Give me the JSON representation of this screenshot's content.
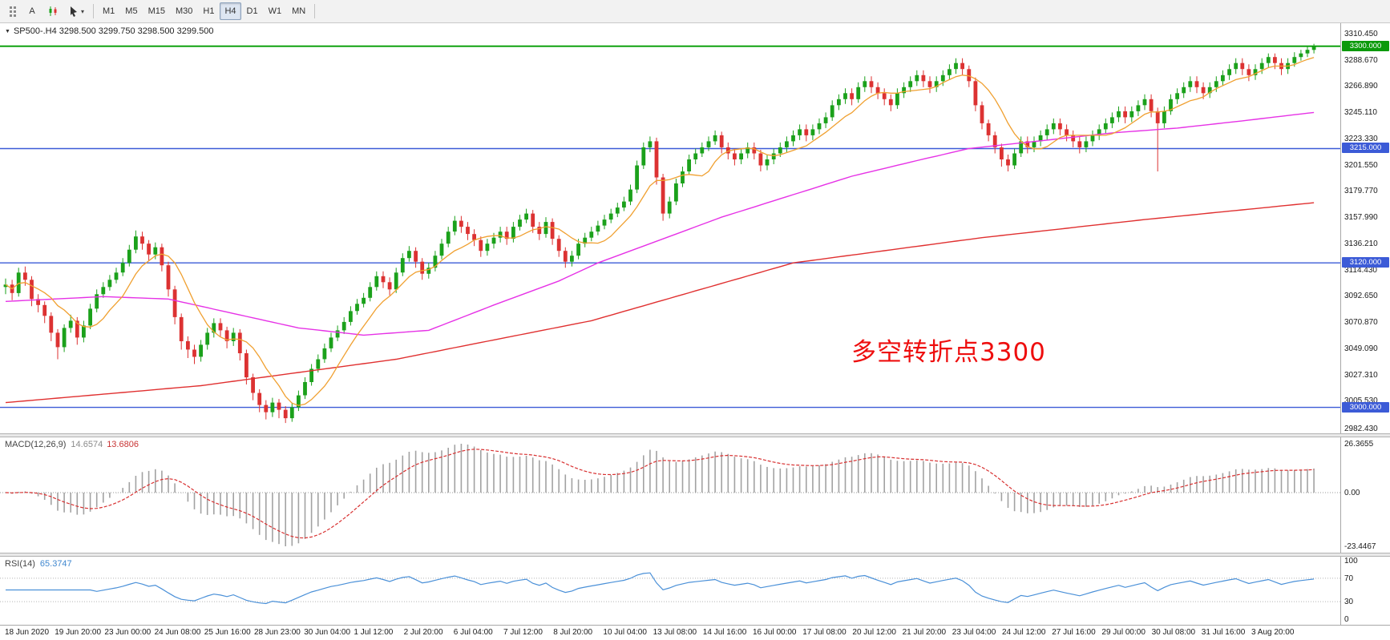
{
  "colors": {
    "candle_up": "#1ba11b",
    "candle_down": "#dc3232",
    "ma_fast": "#f0a030",
    "ma_mid": "#e632e6",
    "ma_slow": "#e03030",
    "macd_hist": "#a2a2a2",
    "macd_signal": "#d83030",
    "rsi": "#4a90d8",
    "hline_green": "#009c00",
    "hline_blue": "#3c5bd7"
  },
  "toolbar": {
    "annotate_button": "A",
    "icons": [
      "grip-handle-icon",
      "candlestick-type-icon",
      "pointer-tool-icon",
      "chevron-down-icon"
    ],
    "timeframe_buttons": [
      "M1",
      "M5",
      "M15",
      "M30",
      "H1",
      "H4",
      "D1",
      "W1",
      "MN"
    ],
    "active_timeframe": "H4"
  },
  "chart": {
    "symbol_line": "SP500-.H4  3298.500 3299.750 3298.500 3299.500",
    "annotation_text": "多空转折点3300",
    "price_axis_labels": [
      "3310.450",
      "3288.670",
      "3266.890",
      "3245.110",
      "3223.330",
      "3201.550",
      "3179.770",
      "3157.990",
      "3136.210",
      "3114.430",
      "3092.650",
      "3070.870",
      "3049.090",
      "3027.310",
      "3005.530",
      "2982.430"
    ],
    "price_tags": [
      {
        "label": "3300.000",
        "price": 3300.0,
        "bg": "#0a9a0a"
      },
      {
        "label": "3215.000",
        "price": 3215.0,
        "bg": "#3c5bd7"
      },
      {
        "label": "3120.000",
        "price": 3120.0,
        "bg": "#3c5bd7"
      },
      {
        "label": "3000.000",
        "price": 3000.0,
        "bg": "#3c5bd7"
      }
    ]
  },
  "macd_panel": {
    "label": "MACD(12,26,9)",
    "value_main": "14.6574",
    "value_signal": "13.6806",
    "axis_labels": [
      "26.3655",
      "0.00",
      "-23.4467"
    ]
  },
  "rsi_panel": {
    "label": "RSI(14)",
    "value": "65.3747",
    "axis_labels": [
      "100",
      "70",
      "30",
      "0"
    ]
  },
  "chart_data": {
    "type": "candlestick",
    "symbol": "SP500-",
    "timeframe": "H4",
    "y_range": [
      2982.43,
      3310.45
    ],
    "price_axis_ticks": [
      3310.45,
      3288.67,
      3266.89,
      3245.11,
      3223.33,
      3201.55,
      3179.77,
      3157.99,
      3136.21,
      3114.43,
      3092.65,
      3070.87,
      3049.09,
      3027.31,
      3005.53,
      2982.43
    ],
    "horizontal_lines": [
      {
        "price": 3300.0,
        "color": "#009c00",
        "width": 1.8,
        "name": "resistance-3300"
      },
      {
        "price": 3215.0,
        "color": "#3c5bd7",
        "width": 1.4,
        "name": "level-3215"
      },
      {
        "price": 3120.0,
        "color": "#3c5bd7",
        "width": 1.4,
        "name": "level-3120"
      },
      {
        "price": 3000.0,
        "color": "#3c5bd7",
        "width": 1.4,
        "name": "support-3000"
      }
    ],
    "ohlc": [
      [
        3100,
        3107,
        3094,
        3102
      ],
      [
        3102,
        3106,
        3089,
        3095
      ],
      [
        3095,
        3116,
        3092,
        3112
      ],
      [
        3112,
        3117,
        3101,
        3106
      ],
      [
        3106,
        3109,
        3084,
        3090
      ],
      [
        3090,
        3094,
        3079,
        3085
      ],
      [
        3085,
        3088,
        3070,
        3076
      ],
      [
        3076,
        3079,
        3055,
        3062
      ],
      [
        3062,
        3065,
        3040,
        3050
      ],
      [
        3050,
        3069,
        3046,
        3066
      ],
      [
        3066,
        3077,
        3062,
        3072
      ],
      [
        3072,
        3075,
        3052,
        3058
      ],
      [
        3058,
        3072,
        3054,
        3068
      ],
      [
        3068,
        3086,
        3065,
        3082
      ],
      [
        3082,
        3098,
        3079,
        3094
      ],
      [
        3094,
        3104,
        3091,
        3100
      ],
      [
        3100,
        3110,
        3097,
        3106
      ],
      [
        3106,
        3116,
        3103,
        3112
      ],
      [
        3112,
        3124,
        3109,
        3120
      ],
      [
        3120,
        3135,
        3117,
        3131
      ],
      [
        3131,
        3147,
        3128,
        3142
      ],
      [
        3142,
        3146,
        3131,
        3136
      ],
      [
        3136,
        3139,
        3122,
        3127
      ],
      [
        3127,
        3137,
        3123,
        3133
      ],
      [
        3133,
        3136,
        3113,
        3118
      ],
      [
        3118,
        3121,
        3092,
        3098
      ],
      [
        3098,
        3101,
        3069,
        3075
      ],
      [
        3075,
        3078,
        3048,
        3055
      ],
      [
        3055,
        3059,
        3041,
        3048
      ],
      [
        3048,
        3052,
        3036,
        3042
      ],
      [
        3042,
        3056,
        3038,
        3052
      ],
      [
        3052,
        3066,
        3048,
        3062
      ],
      [
        3062,
        3074,
        3058,
        3070
      ],
      [
        3070,
        3074,
        3059,
        3064
      ],
      [
        3064,
        3067,
        3049,
        3055
      ],
      [
        3055,
        3066,
        3051,
        3062
      ],
      [
        3062,
        3065,
        3039,
        3045
      ],
      [
        3045,
        3048,
        3019,
        3025
      ],
      [
        3025,
        3028,
        3006,
        3012
      ],
      [
        3012,
        3015,
        2996,
        3002
      ],
      [
        3002,
        3006,
        2990,
        2996
      ],
      [
        2996,
        3008,
        2992,
        3004
      ],
      [
        3004,
        3007,
        2991,
        2998
      ],
      [
        2998,
        3001,
        2987,
        2991
      ],
      [
        2991,
        3004,
        2988,
        3000
      ],
      [
        3000,
        3014,
        2997,
        3010
      ],
      [
        3010,
        3025,
        3007,
        3021
      ],
      [
        3021,
        3036,
        3018,
        3032
      ],
      [
        3032,
        3044,
        3029,
        3040
      ],
      [
        3040,
        3053,
        3037,
        3049
      ],
      [
        3049,
        3062,
        3046,
        3058
      ],
      [
        3058,
        3068,
        3055,
        3064
      ],
      [
        3064,
        3075,
        3061,
        3071
      ],
      [
        3071,
        3084,
        3068,
        3080
      ],
      [
        3080,
        3090,
        3077,
        3086
      ],
      [
        3086,
        3095,
        3083,
        3091
      ],
      [
        3091,
        3104,
        3088,
        3100
      ],
      [
        3100,
        3113,
        3097,
        3109
      ],
      [
        3109,
        3113,
        3099,
        3104
      ],
      [
        3104,
        3108,
        3093,
        3098
      ],
      [
        3098,
        3116,
        3095,
        3112
      ],
      [
        3112,
        3128,
        3109,
        3124
      ],
      [
        3124,
        3134,
        3121,
        3130
      ],
      [
        3130,
        3133,
        3116,
        3121
      ],
      [
        3121,
        3124,
        3106,
        3111
      ],
      [
        3111,
        3120,
        3107,
        3116
      ],
      [
        3116,
        3130,
        3113,
        3126
      ],
      [
        3126,
        3140,
        3123,
        3136
      ],
      [
        3136,
        3150,
        3133,
        3146
      ],
      [
        3146,
        3159,
        3143,
        3155
      ],
      [
        3155,
        3159,
        3145,
        3150
      ],
      [
        3150,
        3154,
        3139,
        3144
      ],
      [
        3144,
        3148,
        3134,
        3139
      ],
      [
        3139,
        3142,
        3125,
        3130
      ],
      [
        3130,
        3140,
        3126,
        3136
      ],
      [
        3136,
        3145,
        3132,
        3141
      ],
      [
        3141,
        3150,
        3137,
        3146
      ],
      [
        3146,
        3150,
        3135,
        3140
      ],
      [
        3140,
        3154,
        3137,
        3150
      ],
      [
        3150,
        3160,
        3147,
        3156
      ],
      [
        3156,
        3165,
        3153,
        3161
      ],
      [
        3161,
        3164,
        3145,
        3150
      ],
      [
        3150,
        3154,
        3139,
        3144
      ],
      [
        3144,
        3158,
        3141,
        3154
      ],
      [
        3154,
        3157,
        3135,
        3140
      ],
      [
        3140,
        3143,
        3125,
        3130
      ],
      [
        3130,
        3133,
        3116,
        3121
      ],
      [
        3121,
        3130,
        3117,
        3126
      ],
      [
        3126,
        3140,
        3123,
        3136
      ],
      [
        3136,
        3145,
        3133,
        3141
      ],
      [
        3141,
        3150,
        3138,
        3146
      ],
      [
        3146,
        3155,
        3143,
        3151
      ],
      [
        3151,
        3160,
        3148,
        3156
      ],
      [
        3156,
        3165,
        3153,
        3161
      ],
      [
        3161,
        3170,
        3158,
        3166
      ],
      [
        3166,
        3175,
        3163,
        3171
      ],
      [
        3171,
        3185,
        3168,
        3181
      ],
      [
        3181,
        3205,
        3178,
        3201
      ],
      [
        3201,
        3220,
        3198,
        3216
      ],
      [
        3216,
        3225,
        3212,
        3221
      ],
      [
        3221,
        3224,
        3185,
        3191
      ],
      [
        3191,
        3194,
        3155,
        3161
      ],
      [
        3161,
        3175,
        3157,
        3171
      ],
      [
        3171,
        3190,
        3168,
        3186
      ],
      [
        3186,
        3200,
        3183,
        3196
      ],
      [
        3196,
        3210,
        3193,
        3206
      ],
      [
        3206,
        3215,
        3202,
        3211
      ],
      [
        3211,
        3220,
        3208,
        3216
      ],
      [
        3216,
        3225,
        3213,
        3221
      ],
      [
        3221,
        3230,
        3218,
        3226
      ],
      [
        3226,
        3229,
        3211,
        3216
      ],
      [
        3216,
        3220,
        3206,
        3211
      ],
      [
        3211,
        3215,
        3201,
        3206
      ],
      [
        3206,
        3215,
        3202,
        3211
      ],
      [
        3211,
        3220,
        3207,
        3216
      ],
      [
        3216,
        3220,
        3206,
        3211
      ],
      [
        3211,
        3214,
        3196,
        3201
      ],
      [
        3201,
        3210,
        3197,
        3206
      ],
      [
        3206,
        3215,
        3202,
        3211
      ],
      [
        3211,
        3220,
        3208,
        3216
      ],
      [
        3216,
        3225,
        3212,
        3221
      ],
      [
        3221,
        3230,
        3217,
        3226
      ],
      [
        3226,
        3235,
        3222,
        3231
      ],
      [
        3231,
        3235,
        3221,
        3226
      ],
      [
        3226,
        3235,
        3222,
        3231
      ],
      [
        3231,
        3240,
        3227,
        3236
      ],
      [
        3236,
        3245,
        3232,
        3241
      ],
      [
        3241,
        3255,
        3238,
        3251
      ],
      [
        3251,
        3260,
        3247,
        3256
      ],
      [
        3256,
        3265,
        3252,
        3261
      ],
      [
        3261,
        3265,
        3251,
        3256
      ],
      [
        3256,
        3270,
        3253,
        3266
      ],
      [
        3266,
        3275,
        3262,
        3271
      ],
      [
        3271,
        3275,
        3261,
        3266
      ],
      [
        3266,
        3270,
        3256,
        3261
      ],
      [
        3261,
        3265,
        3251,
        3256
      ],
      [
        3256,
        3260,
        3246,
        3251
      ],
      [
        3251,
        3265,
        3248,
        3261
      ],
      [
        3261,
        3270,
        3257,
        3266
      ],
      [
        3266,
        3275,
        3262,
        3271
      ],
      [
        3271,
        3280,
        3267,
        3276
      ],
      [
        3276,
        3280,
        3266,
        3271
      ],
      [
        3271,
        3275,
        3261,
        3266
      ],
      [
        3266,
        3275,
        3262,
        3271
      ],
      [
        3271,
        3280,
        3267,
        3276
      ],
      [
        3276,
        3285,
        3272,
        3281
      ],
      [
        3281,
        3290,
        3277,
        3286
      ],
      [
        3286,
        3290,
        3276,
        3281
      ],
      [
        3281,
        3284,
        3266,
        3271
      ],
      [
        3271,
        3274,
        3246,
        3251
      ],
      [
        3251,
        3254,
        3231,
        3236
      ],
      [
        3236,
        3239,
        3221,
        3226
      ],
      [
        3226,
        3229,
        3211,
        3216
      ],
      [
        3216,
        3219,
        3200,
        3206
      ],
      [
        3206,
        3210,
        3196,
        3201
      ],
      [
        3201,
        3215,
        3198,
        3211
      ],
      [
        3211,
        3225,
        3208,
        3221
      ],
      [
        3221,
        3225,
        3211,
        3216
      ],
      [
        3216,
        3225,
        3212,
        3221
      ],
      [
        3221,
        3230,
        3217,
        3226
      ],
      [
        3226,
        3235,
        3222,
        3231
      ],
      [
        3231,
        3240,
        3227,
        3236
      ],
      [
        3236,
        3240,
        3226,
        3231
      ],
      [
        3231,
        3235,
        3221,
        3226
      ],
      [
        3226,
        3230,
        3216,
        3221
      ],
      [
        3221,
        3225,
        3211,
        3216
      ],
      [
        3216,
        3225,
        3212,
        3221
      ],
      [
        3221,
        3230,
        3217,
        3226
      ],
      [
        3226,
        3235,
        3222,
        3231
      ],
      [
        3231,
        3240,
        3227,
        3236
      ],
      [
        3236,
        3245,
        3232,
        3241
      ],
      [
        3241,
        3250,
        3237,
        3246
      ],
      [
        3246,
        3250,
        3236,
        3241
      ],
      [
        3241,
        3250,
        3237,
        3246
      ],
      [
        3246,
        3255,
        3242,
        3251
      ],
      [
        3251,
        3260,
        3247,
        3256
      ],
      [
        3256,
        3260,
        3241,
        3246
      ],
      [
        3246,
        3249,
        3196,
        3236
      ],
      [
        3236,
        3250,
        3232,
        3246
      ],
      [
        3246,
        3260,
        3243,
        3256
      ],
      [
        3256,
        3265,
        3252,
        3261
      ],
      [
        3261,
        3270,
        3257,
        3266
      ],
      [
        3266,
        3275,
        3262,
        3271
      ],
      [
        3271,
        3275,
        3261,
        3266
      ],
      [
        3266,
        3270,
        3256,
        3261
      ],
      [
        3261,
        3270,
        3257,
        3266
      ],
      [
        3266,
        3275,
        3262,
        3271
      ],
      [
        3271,
        3280,
        3267,
        3276
      ],
      [
        3276,
        3285,
        3272,
        3281
      ],
      [
        3281,
        3290,
        3277,
        3286
      ],
      [
        3286,
        3290,
        3276,
        3281
      ],
      [
        3281,
        3285,
        3271,
        3276
      ],
      [
        3276,
        3285,
        3272,
        3281
      ],
      [
        3281,
        3290,
        3277,
        3286
      ],
      [
        3286,
        3294,
        3282,
        3291
      ],
      [
        3291,
        3294,
        3281,
        3286
      ],
      [
        3286,
        3290,
        3276,
        3281
      ],
      [
        3281,
        3290,
        3277,
        3286
      ],
      [
        3286,
        3295,
        3283,
        3291
      ],
      [
        3291,
        3297,
        3288,
        3294
      ],
      [
        3294,
        3300,
        3291,
        3297
      ],
      [
        3297,
        3302,
        3294,
        3299.5
      ]
    ],
    "ma_fast": {
      "type": "sma",
      "period": 8,
      "color": "#f0a030"
    },
    "ma_mid": {
      "color": "#e632e6",
      "points": [
        [
          0,
          3088
        ],
        [
          15,
          3092
        ],
        [
          25,
          3090
        ],
        [
          35,
          3078
        ],
        [
          45,
          3066
        ],
        [
          55,
          3060
        ],
        [
          65,
          3064
        ],
        [
          75,
          3085
        ],
        [
          85,
          3105
        ],
        [
          91,
          3120
        ],
        [
          100,
          3138
        ],
        [
          110,
          3158
        ],
        [
          120,
          3175
        ],
        [
          130,
          3192
        ],
        [
          140,
          3205
        ],
        [
          148,
          3215
        ],
        [
          160,
          3222
        ],
        [
          170,
          3228
        ],
        [
          180,
          3232
        ],
        [
          190,
          3238
        ],
        [
          201,
          3245
        ]
      ]
    },
    "ma_slow": {
      "color": "#e03030",
      "points": [
        [
          0,
          3004
        ],
        [
          30,
          3018
        ],
        [
          60,
          3040
        ],
        [
          90,
          3072
        ],
        [
          121,
          3120
        ],
        [
          150,
          3141
        ],
        [
          175,
          3156
        ],
        [
          201,
          3170
        ]
      ]
    },
    "macd": {
      "fast": 12,
      "slow": 26,
      "signal": 9,
      "current": [
        14.6574,
        13.6806
      ],
      "axis_range": [
        -23.4467,
        26.3655
      ]
    },
    "rsi": {
      "period": 14,
      "current": 65.3747,
      "levels": [
        70,
        30
      ],
      "range": [
        0,
        100
      ]
    },
    "x_labels": [
      "18 Jun 2020",
      "19 Jun 20:00",
      "23 Jun 00:00",
      "24 Jun 08:00",
      "25 Jun 16:00",
      "28 Jun 23:00",
      "30 Jun 04:00",
      "1 Jul 12:00",
      "2 Jul 20:00",
      "6 Jul 04:00",
      "7 Jul 12:00",
      "8 Jul 20:00",
      "10 Jul 04:00",
      "13 Jul 08:00",
      "14 Jul 16:00",
      "16 Jul 00:00",
      "17 Jul 08:00",
      "20 Jul 12:00",
      "21 Jul 20:00",
      "23 Jul 04:00",
      "24 Jul 12:00",
      "27 Jul 16:00",
      "29 Jul 00:00",
      "30 Jul 08:00",
      "31 Jul 16:00",
      "3 Aug 20:00"
    ]
  }
}
